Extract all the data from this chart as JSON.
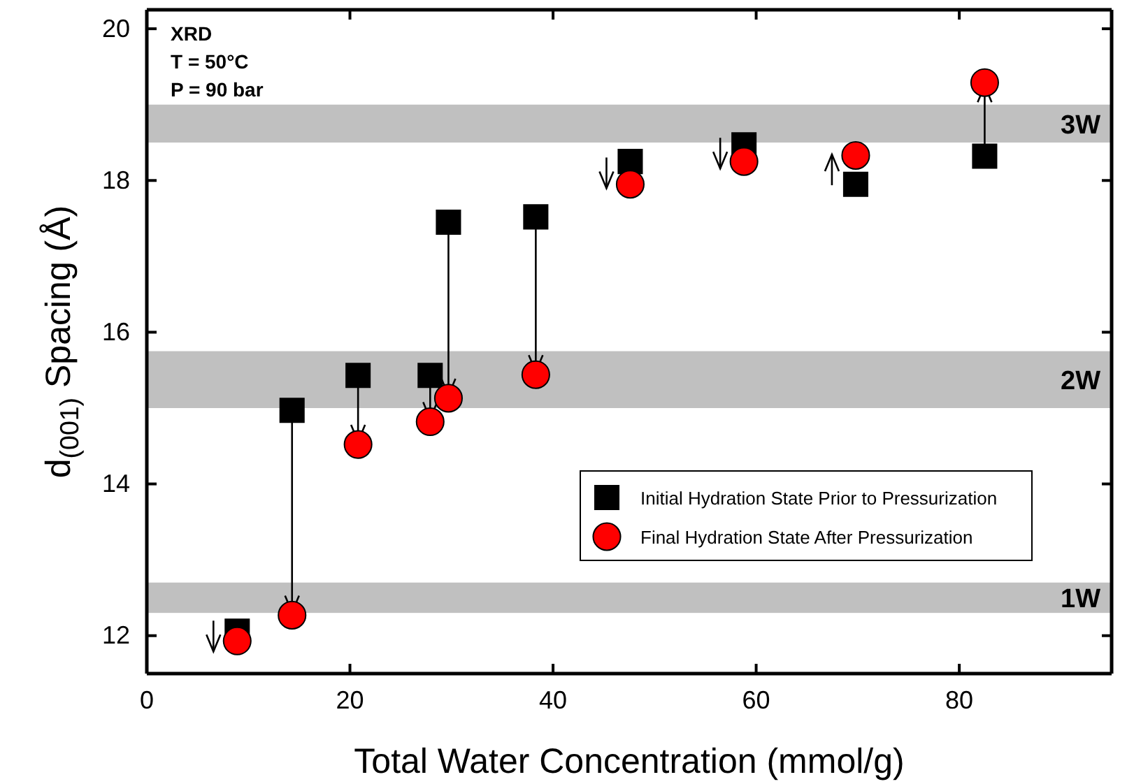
{
  "chart_data": {
    "type": "scatter",
    "xlabel": "Total Water Concentration (mmol/g)",
    "ylabel": "d$_{(001)}$ Spacing (Å)",
    "x": [
      8.9,
      14.3,
      20.8,
      27.9,
      29.7,
      38.3,
      47.6,
      58.8,
      69.8,
      82.5
    ],
    "series": [
      {
        "name": "Initial Hydration State Prior to Pressurization",
        "color": "#000000",
        "marker": "square",
        "values": [
          12.06,
          14.97,
          15.43,
          15.43,
          17.45,
          17.52,
          18.25,
          18.47,
          17.95,
          18.32
        ]
      },
      {
        "name": "Final Hydration State After Pressurization",
        "color": "#ff0000",
        "marker": "circle",
        "values": [
          11.93,
          12.27,
          14.52,
          14.82,
          15.13,
          15.44,
          17.95,
          18.25,
          18.33,
          19.29
        ]
      }
    ],
    "xlim": [
      0,
      95
    ],
    "xticks": [
      0,
      20,
      40,
      60,
      80
    ],
    "ylim": [
      11.5,
      20.25
    ],
    "yticks": [
      12,
      14,
      16,
      18,
      20
    ],
    "bands": [
      {
        "axis": "y",
        "from": 18.5,
        "to": 19.0,
        "label": "3W",
        "color": "#c0c0c0"
      },
      {
        "axis": "y",
        "from": 15.0,
        "to": 15.75,
        "label": "2W",
        "color": "#c0c0c0"
      },
      {
        "axis": "y",
        "from": 12.3,
        "to": 12.7,
        "label": "1W",
        "color": "#c0c0c0"
      }
    ],
    "annotations": [
      "XRD",
      "T = 50°C",
      "P = 90 bar"
    ],
    "legend": "bottom right",
    "grid": false
  }
}
